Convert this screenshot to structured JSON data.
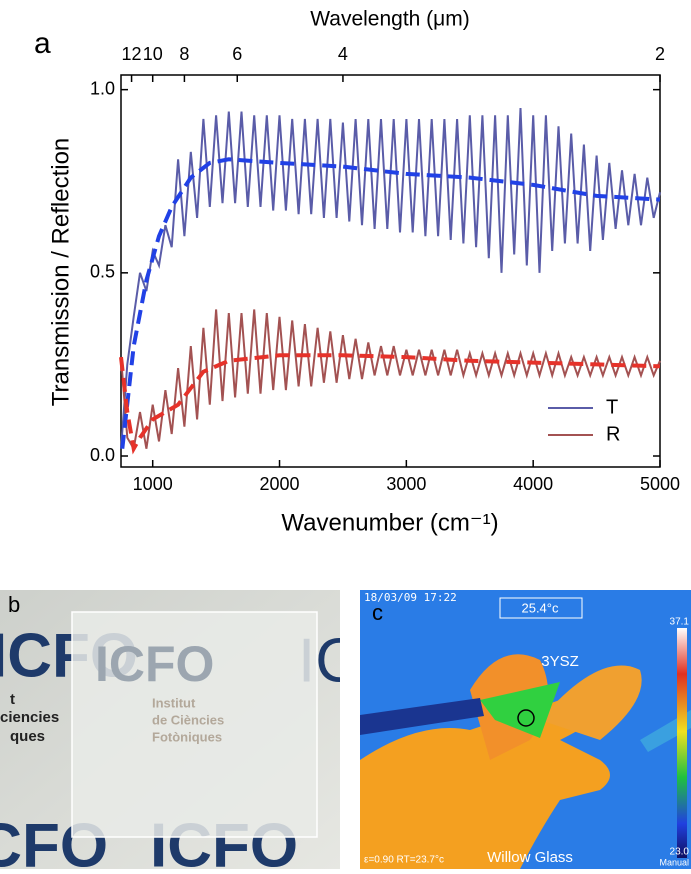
{
  "chart_data": {
    "type": "line",
    "panel_label": "a",
    "xlabel": "Wavenumber (cm⁻¹)",
    "ylabel": "Transmission / Reflection",
    "x2label": "Wavelength (μm)",
    "x": [
      750,
      800,
      850,
      900,
      950,
      1000,
      1050,
      1100,
      1150,
      1200,
      1250,
      1300,
      1350,
      1400,
      1450,
      1500,
      1550,
      1600,
      1650,
      1700,
      1750,
      1800,
      1850,
      1900,
      1950,
      2000,
      2050,
      2100,
      2150,
      2200,
      2250,
      2300,
      2350,
      2400,
      2450,
      2500,
      2550,
      2600,
      2650,
      2700,
      2750,
      2800,
      2850,
      2900,
      2950,
      3000,
      3050,
      3100,
      3150,
      3200,
      3250,
      3300,
      3350,
      3400,
      3450,
      3500,
      3550,
      3600,
      3650,
      3700,
      3750,
      3800,
      3850,
      3900,
      3950,
      4000,
      4050,
      4100,
      4150,
      4200,
      4250,
      4300,
      4350,
      4400,
      4450,
      4500,
      4550,
      4600,
      4650,
      4700,
      4750,
      4800,
      4850,
      4900,
      4950,
      5000
    ],
    "series": [
      {
        "name": "T",
        "color": "#5a5ca8",
        "values": [
          0.02,
          0.25,
          0.38,
          0.5,
          0.45,
          0.56,
          0.52,
          0.63,
          0.57,
          0.81,
          0.6,
          0.83,
          0.65,
          0.92,
          0.68,
          0.93,
          0.69,
          0.94,
          0.69,
          0.94,
          0.68,
          0.93,
          0.68,
          0.93,
          0.67,
          0.93,
          0.67,
          0.92,
          0.66,
          0.92,
          0.66,
          0.92,
          0.65,
          0.92,
          0.65,
          0.91,
          0.64,
          0.92,
          0.63,
          0.92,
          0.62,
          0.92,
          0.62,
          0.92,
          0.61,
          0.92,
          0.61,
          0.92,
          0.6,
          0.92,
          0.6,
          0.92,
          0.59,
          0.92,
          0.58,
          0.93,
          0.57,
          0.93,
          0.54,
          0.93,
          0.5,
          0.93,
          0.55,
          0.95,
          0.52,
          0.93,
          0.5,
          0.93,
          0.56,
          0.9,
          0.58,
          0.88,
          0.58,
          0.85,
          0.56,
          0.82,
          0.59,
          0.8,
          0.62,
          0.78,
          0.63,
          0.77,
          0.63,
          0.76,
          0.65,
          0.72
        ]
      },
      {
        "name": "R",
        "color": "#a35252",
        "values": [
          0.27,
          0.05,
          0.02,
          0.12,
          0.02,
          0.14,
          0.04,
          0.18,
          0.06,
          0.24,
          0.08,
          0.3,
          0.1,
          0.35,
          0.14,
          0.4,
          0.15,
          0.39,
          0.16,
          0.39,
          0.17,
          0.4,
          0.17,
          0.39,
          0.18,
          0.38,
          0.18,
          0.37,
          0.19,
          0.36,
          0.19,
          0.35,
          0.2,
          0.34,
          0.2,
          0.33,
          0.21,
          0.32,
          0.21,
          0.31,
          0.22,
          0.3,
          0.22,
          0.3,
          0.22,
          0.29,
          0.22,
          0.29,
          0.22,
          0.29,
          0.22,
          0.29,
          0.22,
          0.29,
          0.22,
          0.28,
          0.22,
          0.28,
          0.22,
          0.28,
          0.22,
          0.28,
          0.22,
          0.28,
          0.22,
          0.28,
          0.22,
          0.28,
          0.22,
          0.28,
          0.22,
          0.27,
          0.22,
          0.27,
          0.22,
          0.27,
          0.22,
          0.27,
          0.22,
          0.27,
          0.22,
          0.27,
          0.22,
          0.27,
          0.22,
          0.26
        ]
      },
      {
        "color": "#2141e6",
        "dash": true,
        "x": [
          760,
          850,
          950,
          1050,
          1150,
          1300,
          1450,
          1600,
          2000,
          2500,
          3000,
          3500,
          4000,
          4500,
          5000
        ],
        "values": [
          0.02,
          0.3,
          0.48,
          0.6,
          0.68,
          0.76,
          0.8,
          0.81,
          0.8,
          0.79,
          0.77,
          0.76,
          0.74,
          0.71,
          0.7
        ]
      },
      {
        "color": "#e6322a",
        "dash": true,
        "x": [
          750,
          800,
          850,
          900,
          1000,
          1100,
          1200,
          1400,
          1600,
          2000,
          2500,
          3000,
          3500,
          4000,
          4500,
          5000
        ],
        "values": [
          0.27,
          0.12,
          0.02,
          0.05,
          0.1,
          0.12,
          0.14,
          0.23,
          0.26,
          0.275,
          0.275,
          0.27,
          0.26,
          0.255,
          0.25,
          0.245
        ]
      }
    ],
    "xlim": [
      750,
      5000
    ],
    "xticks": [
      1000,
      2000,
      3000,
      4000,
      5000
    ],
    "ylim": [
      -0.03,
      1.04
    ],
    "yticks": [
      {
        "value": 0,
        "label": "0.0"
      },
      {
        "value": 0.5,
        "label": "0.5"
      },
      {
        "value": 1,
        "label": "1.0"
      }
    ],
    "x2ticks": [
      12,
      10,
      8,
      6,
      4,
      2
    ],
    "legend_position": "lower right",
    "grid": false
  },
  "photo_b": {
    "label": "b",
    "logo": "ICFO",
    "lines": [
      "Institut",
      "de Ciències",
      "Fotòniques"
    ],
    "edge_texts": [
      "t",
      "ciencies",
      "ques"
    ]
  },
  "photo_c": {
    "label": "c",
    "timestamp": "18/03/09 17:22",
    "spot": "25.4°c",
    "sample": "3YSZ",
    "substrate": "Willow Glass",
    "scale_max": "37.1",
    "scale_min": "23.0",
    "params": "ε=0.90 RT=23.7°c",
    "mode": "Manual"
  }
}
